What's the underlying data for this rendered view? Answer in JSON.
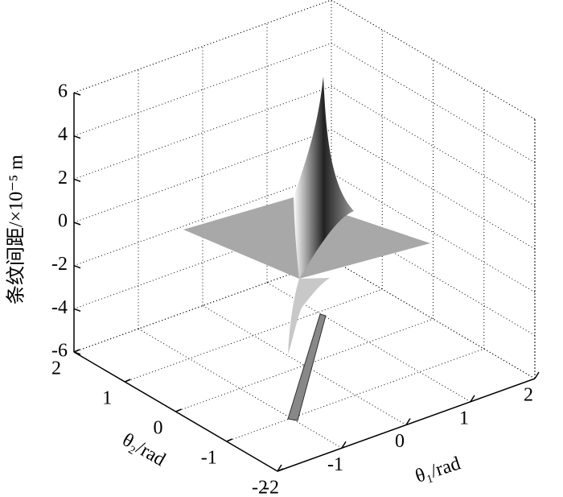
{
  "chart_data": {
    "type": "surface3d",
    "xlabel": "θ₁/rad",
    "ylabel": "θ₂/rad",
    "zlabel": "条纹间距/×10⁻⁵ m",
    "xlim": [
      -2,
      2
    ],
    "ylim": [
      -2,
      2
    ],
    "zlim": [
      -6,
      6
    ],
    "xticks": [
      -2,
      -1,
      0,
      1,
      2
    ],
    "yticks": [
      -2,
      -1,
      0,
      1,
      2
    ],
    "zticks": [
      -6,
      -4,
      -2,
      0,
      2,
      4,
      6
    ],
    "grid": true
  }
}
